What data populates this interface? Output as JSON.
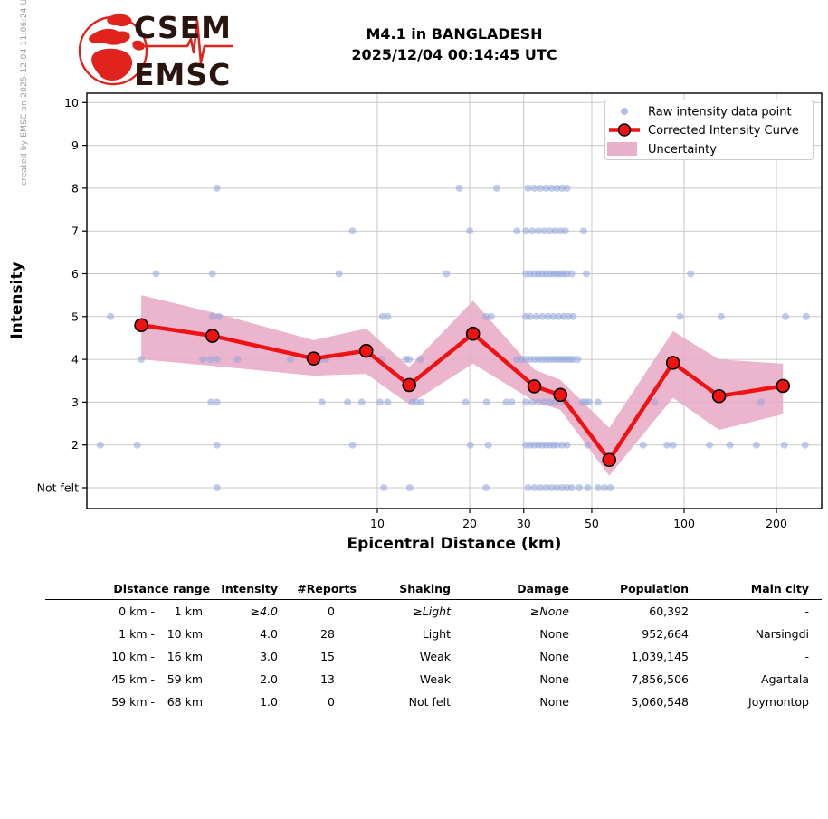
{
  "meta": {
    "created_note": "created by EMSC on 2025-12-04 11:06:24 UTC"
  },
  "logo": {
    "top": "CSEM",
    "bottom": "EMSC"
  },
  "header": {
    "title_line1": "M4.1 in BANGLADESH",
    "title_line2": "2025/12/04 00:14:45 UTC"
  },
  "colors": {
    "curve": "#ee1212",
    "band": "#e9adc9",
    "raw_point": "#8fa4dd",
    "grid": "#c9c9c9",
    "spine": "#000000",
    "legend_border": "#cccccc"
  },
  "chart_data": {
    "type": "line",
    "title": "",
    "xlabel": "Epicentral Distance (km)",
    "ylabel": "Intensity",
    "x_scale": "log",
    "x_ticks": [
      10,
      20,
      30,
      50,
      100,
      200
    ],
    "x_range": [
      1.13,
      281
    ],
    "y_range": [
      0.5,
      10.2
    ],
    "y_ticks": [
      {
        "v": 10,
        "label": "10"
      },
      {
        "v": 9,
        "label": "9"
      },
      {
        "v": 8,
        "label": "8"
      },
      {
        "v": 7,
        "label": "7"
      },
      {
        "v": 6,
        "label": "6"
      },
      {
        "v": 5,
        "label": "5"
      },
      {
        "v": 4,
        "label": "4"
      },
      {
        "v": 3,
        "label": "3"
      },
      {
        "v": 2,
        "label": "2"
      },
      {
        "v": 1,
        "label": "Not felt"
      }
    ],
    "grid": true,
    "legend_position": "upper right",
    "legend": [
      {
        "label": "Raw intensity data point",
        "type": "dot"
      },
      {
        "label": "Corrected Intensity Curve",
        "type": "line-marker"
      },
      {
        "label": "Uncertainty",
        "type": "patch"
      }
    ],
    "curve_points": [
      {
        "d": 1.7,
        "i": 4.8,
        "hi": 5.5,
        "lo": 4.0
      },
      {
        "d": 2.9,
        "i": 4.55,
        "hi": 5.1,
        "lo": 3.85
      },
      {
        "d": 6.2,
        "i": 4.02,
        "hi": 4.45,
        "lo": 3.62
      },
      {
        "d": 9.2,
        "i": 4.2,
        "hi": 4.72,
        "lo": 3.66
      },
      {
        "d": 12.7,
        "i": 3.4,
        "hi": 3.82,
        "lo": 2.95
      },
      {
        "d": 20.5,
        "i": 4.6,
        "hi": 5.37,
        "lo": 3.9
      },
      {
        "d": 32.5,
        "i": 3.37,
        "hi": 3.76,
        "lo": 3.02
      },
      {
        "d": 39.5,
        "i": 3.17,
        "hi": 3.52,
        "lo": 2.82
      },
      {
        "d": 57,
        "i": 1.65,
        "hi": 2.4,
        "lo": 1.28
      },
      {
        "d": 92,
        "i": 3.92,
        "hi": 4.66,
        "lo": 3.1
      },
      {
        "d": 130,
        "i": 3.14,
        "hi": 4.0,
        "lo": 2.35
      },
      {
        "d": 210,
        "i": 3.38,
        "hi": 3.9,
        "lo": 2.72
      }
    ],
    "raw_points": [
      [
        3,
        8
      ],
      [
        18.5,
        8
      ],
      [
        24.5,
        8
      ],
      [
        31,
        8
      ],
      [
        32.5,
        8
      ],
      [
        34,
        8
      ],
      [
        35.5,
        8
      ],
      [
        37,
        8
      ],
      [
        38.5,
        8
      ],
      [
        40,
        8
      ],
      [
        41.5,
        8
      ],
      [
        8.3,
        7
      ],
      [
        20,
        7
      ],
      [
        28.5,
        7
      ],
      [
        30.5,
        7
      ],
      [
        32,
        7
      ],
      [
        33.5,
        7
      ],
      [
        35,
        7
      ],
      [
        36.5,
        7
      ],
      [
        38,
        7
      ],
      [
        39.5,
        7
      ],
      [
        41,
        7
      ],
      [
        47,
        7
      ],
      [
        1.9,
        6
      ],
      [
        2.9,
        6
      ],
      [
        7.5,
        6
      ],
      [
        16.8,
        6
      ],
      [
        30.5,
        6
      ],
      [
        31.5,
        6
      ],
      [
        32.5,
        6
      ],
      [
        33.5,
        6
      ],
      [
        34.5,
        6
      ],
      [
        35.5,
        6
      ],
      [
        36.5,
        6
      ],
      [
        37.5,
        6
      ],
      [
        38.5,
        6
      ],
      [
        39.5,
        6
      ],
      [
        40.5,
        6
      ],
      [
        41.5,
        6
      ],
      [
        43,
        6
      ],
      [
        48,
        6
      ],
      [
        105,
        6
      ],
      [
        1.35,
        5
      ],
      [
        2.9,
        5
      ],
      [
        3.05,
        5
      ],
      [
        10.4,
        5
      ],
      [
        10.8,
        5
      ],
      [
        22.6,
        5
      ],
      [
        23.5,
        5
      ],
      [
        30.5,
        5
      ],
      [
        31.5,
        5
      ],
      [
        33,
        5
      ],
      [
        34.5,
        5
      ],
      [
        36,
        5
      ],
      [
        37.5,
        5
      ],
      [
        39,
        5
      ],
      [
        40.5,
        5
      ],
      [
        42,
        5
      ],
      [
        43.5,
        5
      ],
      [
        97,
        5
      ],
      [
        132,
        5
      ],
      [
        214,
        5
      ],
      [
        250,
        5
      ],
      [
        1.7,
        4
      ],
      [
        2.7,
        4
      ],
      [
        2.85,
        4
      ],
      [
        3,
        4
      ],
      [
        3.5,
        4
      ],
      [
        5.2,
        4
      ],
      [
        6.5,
        4
      ],
      [
        6.8,
        4
      ],
      [
        10.3,
        4
      ],
      [
        12.4,
        4
      ],
      [
        12.7,
        4
      ],
      [
        13.8,
        4
      ],
      [
        28.5,
        4
      ],
      [
        29.5,
        4
      ],
      [
        30.5,
        4
      ],
      [
        31.5,
        4
      ],
      [
        32.5,
        4
      ],
      [
        33.5,
        4
      ],
      [
        34.5,
        4
      ],
      [
        35.5,
        4
      ],
      [
        36.5,
        4
      ],
      [
        37.5,
        4
      ],
      [
        38.5,
        4
      ],
      [
        39.5,
        4
      ],
      [
        40.5,
        4
      ],
      [
        41.5,
        4
      ],
      [
        42.5,
        4
      ],
      [
        43.5,
        4
      ],
      [
        45,
        4
      ],
      [
        2.87,
        3
      ],
      [
        3,
        3
      ],
      [
        6.6,
        3
      ],
      [
        8,
        3
      ],
      [
        8.9,
        3
      ],
      [
        10.2,
        3
      ],
      [
        10.8,
        3
      ],
      [
        13,
        3
      ],
      [
        13.4,
        3
      ],
      [
        13.9,
        3
      ],
      [
        19.4,
        3
      ],
      [
        22.7,
        3
      ],
      [
        26.3,
        3
      ],
      [
        27.4,
        3
      ],
      [
        30.5,
        3
      ],
      [
        32,
        3
      ],
      [
        33.5,
        3
      ],
      [
        35,
        3
      ],
      [
        36.5,
        3
      ],
      [
        38,
        3
      ],
      [
        40,
        3
      ],
      [
        41.5,
        3
      ],
      [
        46.5,
        3
      ],
      [
        47.7,
        3
      ],
      [
        49,
        3
      ],
      [
        52.4,
        3
      ],
      [
        80,
        3
      ],
      [
        178,
        3
      ],
      [
        1.25,
        2
      ],
      [
        1.65,
        2
      ],
      [
        3,
        2
      ],
      [
        8.3,
        2
      ],
      [
        20.1,
        2
      ],
      [
        23,
        2
      ],
      [
        30.5,
        2
      ],
      [
        31.5,
        2
      ],
      [
        32.5,
        2
      ],
      [
        33.5,
        2
      ],
      [
        34.5,
        2
      ],
      [
        35.5,
        2
      ],
      [
        36.5,
        2
      ],
      [
        37.5,
        2
      ],
      [
        38.5,
        2
      ],
      [
        40,
        2
      ],
      [
        41.5,
        2
      ],
      [
        48.5,
        2
      ],
      [
        73.5,
        2
      ],
      [
        88,
        2
      ],
      [
        92,
        2
      ],
      [
        121,
        2
      ],
      [
        141,
        2
      ],
      [
        172,
        2
      ],
      [
        212,
        2
      ],
      [
        248,
        2
      ],
      [
        3,
        1
      ],
      [
        10.5,
        1
      ],
      [
        12.75,
        1
      ],
      [
        22.6,
        1
      ],
      [
        31,
        1
      ],
      [
        32.5,
        1
      ],
      [
        34,
        1
      ],
      [
        35.5,
        1
      ],
      [
        37,
        1
      ],
      [
        38.5,
        1
      ],
      [
        40,
        1
      ],
      [
        41.5,
        1
      ],
      [
        43,
        1
      ],
      [
        45.5,
        1
      ],
      [
        48.5,
        1
      ],
      [
        52.4,
        1
      ],
      [
        55,
        1
      ],
      [
        57.5,
        1
      ]
    ]
  },
  "table": {
    "headers": [
      "Distance range",
      "Intensity",
      "#Reports",
      "Shaking",
      "Damage",
      "Population",
      "Main city"
    ],
    "rows": [
      {
        "range_from": "0 km -",
        "range_to": "1 km",
        "intensity": "≥4.0",
        "reports": "0",
        "shaking": "≥Light",
        "damage": "≥None",
        "population": "60,392",
        "main_city": "-",
        "italic": true
      },
      {
        "range_from": "1 km -",
        "range_to": "10 km",
        "intensity": "4.0",
        "reports": "28",
        "shaking": "Light",
        "damage": "None",
        "population": "952,664",
        "main_city": "Narsingdi",
        "italic": false
      },
      {
        "range_from": "10 km -",
        "range_to": "16 km",
        "intensity": "3.0",
        "reports": "15",
        "shaking": "Weak",
        "damage": "None",
        "population": "1,039,145",
        "main_city": "-",
        "italic": false
      },
      {
        "range_from": "45 km -",
        "range_to": "59 km",
        "intensity": "2.0",
        "reports": "13",
        "shaking": "Weak",
        "damage": "None",
        "population": "7,856,506",
        "main_city": "Agartala",
        "italic": false
      },
      {
        "range_from": "59 km -",
        "range_to": "68 km",
        "intensity": "1.0",
        "reports": "0",
        "shaking": "Not felt",
        "damage": "None",
        "population": "5,060,548",
        "main_city": "Joymontop",
        "italic": false
      }
    ]
  }
}
